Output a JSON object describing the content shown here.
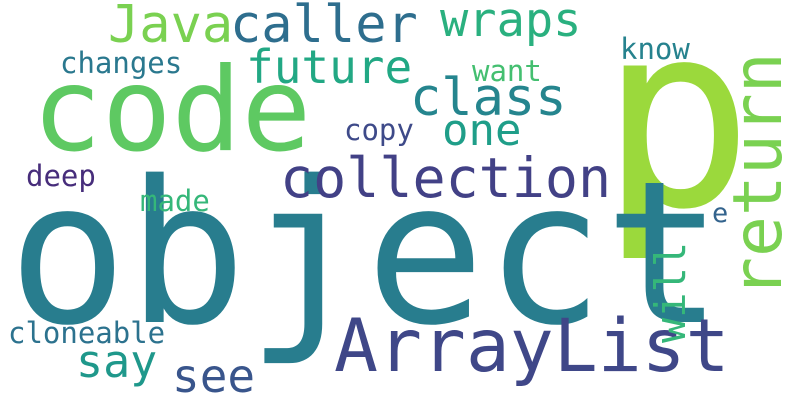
{
  "words": [
    {
      "id": "p",
      "text": "p",
      "color": "#9bd93c"
    },
    {
      "id": "object",
      "text": "object",
      "color": "#287d8e"
    },
    {
      "id": "code",
      "text": "code",
      "color": "#5ec962"
    },
    {
      "id": "ArrayList",
      "text": "ArrayList",
      "color": "#3f4788"
    },
    {
      "id": "return",
      "text": "return",
      "color": "#7ad151"
    },
    {
      "id": "collection",
      "text": "collection",
      "color": "#424186"
    },
    {
      "id": "caller",
      "text": "caller",
      "color": "#2e6e8e"
    },
    {
      "id": "Java",
      "text": "Java",
      "color": "#7ad151"
    },
    {
      "id": "wraps",
      "text": "wraps",
      "color": "#2ab07f"
    },
    {
      "id": "future",
      "text": "future",
      "color": "#22a884"
    },
    {
      "id": "class",
      "text": "class",
      "color": "#25858e"
    },
    {
      "id": "one",
      "text": "one",
      "color": "#1f9e89"
    },
    {
      "id": "will",
      "text": "will",
      "color": "#35b779"
    },
    {
      "id": "say",
      "text": "say",
      "color": "#1f988b"
    },
    {
      "id": "see",
      "text": "see",
      "color": "#39558c"
    },
    {
      "id": "cloneable",
      "text": "cloneable",
      "color": "#2c728e"
    },
    {
      "id": "changes",
      "text": "changes",
      "color": "#2a788e"
    },
    {
      "id": "want",
      "text": "want",
      "color": "#44bf70"
    },
    {
      "id": "know",
      "text": "know",
      "color": "#26828e"
    },
    {
      "id": "copy",
      "text": "copy",
      "color": "#3e4a89"
    },
    {
      "id": "deep",
      "text": "deep",
      "color": "#472d7b"
    },
    {
      "id": "made",
      "text": "made",
      "color": "#35b779"
    },
    {
      "id": "e",
      "text": "e",
      "color": "#33638d"
    }
  ]
}
